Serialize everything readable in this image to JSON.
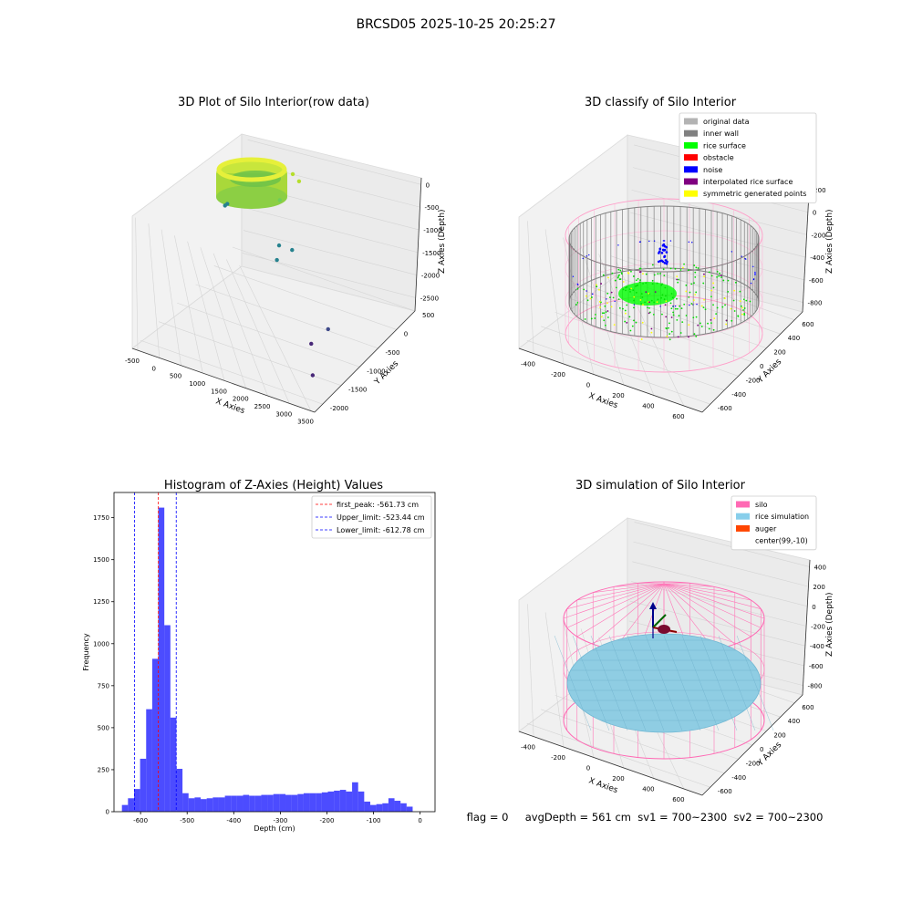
{
  "figure": {
    "suptitle": "BRCSD05 2025-10-25 20:25:27",
    "status_text": "flag = 0     avgDepth = 561 cm  sv1 = 700~2300  sv2 = 700~2300"
  },
  "chart_data": [
    {
      "type": "scatter3d",
      "title": "3D Plot of Silo Interior(row data)",
      "xlabel": "X Axies",
      "ylabel": "Y Axies",
      "zlabel": "Z Axies (Depth)",
      "xticks": [
        "-500",
        "0",
        "500",
        "1000",
        "1500",
        "2000",
        "2500",
        "3000",
        "3500"
      ],
      "yticks": [
        "500",
        "0",
        "-500",
        "-1000",
        "-1500",
        "-2000"
      ],
      "zticks": [
        "0",
        "-500",
        "-1000",
        "-1500",
        "-2000",
        "-2500"
      ],
      "colormap": "viridis",
      "outlier_points": [
        {
          "x": 1100,
          "y": 0,
          "z": -200
        },
        {
          "x": 1250,
          "y": 0,
          "z": -300
        },
        {
          "x": 1000,
          "y": -200,
          "z": -600
        },
        {
          "x": -400,
          "y": 0,
          "z": -1300
        },
        {
          "x": -350,
          "y": 0,
          "z": -1250
        },
        {
          "x": 1200,
          "y": -400,
          "z": -1300
        },
        {
          "x": 1500,
          "y": -400,
          "z": -1300
        },
        {
          "x": 1250,
          "y": -500,
          "z": -1500
        },
        {
          "x": 2900,
          "y": -1000,
          "z": -2000
        },
        {
          "x": 2700,
          "y": -1200,
          "z": -2200
        },
        {
          "x": 3100,
          "y": -1600,
          "z": -2400
        }
      ]
    },
    {
      "type": "scatter3d",
      "title": "3D classify of Silo Interior",
      "xlabel": "X Axies",
      "ylabel": "Y Axies",
      "zlabel": "Z Axies (Depth)",
      "xticks": [
        "-400",
        "-200",
        "0",
        "200",
        "400",
        "600"
      ],
      "yticks": [
        "600",
        "400",
        "200",
        "0",
        "-200",
        "-400",
        "-600"
      ],
      "zticks": [
        "200",
        "0",
        "-200",
        "-400",
        "-600",
        "-800"
      ],
      "legend_loc": "upper right",
      "legend": [
        {
          "label": "original data",
          "color": "#b3b3b3"
        },
        {
          "label": "inner wall",
          "color": "#808080"
        },
        {
          "label": "rice surface",
          "color": "#00ff00"
        },
        {
          "label": "obstacle",
          "color": "#ff0000"
        },
        {
          "label": "noise",
          "color": "#0000ff"
        },
        {
          "label": "interpolated rice surface",
          "color": "#800080"
        },
        {
          "label": "symmetric generated points",
          "color": "#ffff00"
        }
      ]
    },
    {
      "type": "bar",
      "title": "Histogram of Z-Axies (Height) Values",
      "xlabel": "Depth (cm)",
      "ylabel": "Frequency",
      "xlim": [
        -657,
        32
      ],
      "ylim": [
        0,
        1900
      ],
      "xticks": [
        -600,
        -500,
        -400,
        -300,
        -200,
        -100,
        0
      ],
      "yticks": [
        0,
        250,
        500,
        750,
        1000,
        1250,
        1500,
        1750
      ],
      "bar_color": "#0000ff",
      "bin_width": 13,
      "bin_start": -640,
      "values": [
        40,
        80,
        135,
        315,
        610,
        910,
        1810,
        1110,
        560,
        255,
        110,
        80,
        85,
        75,
        80,
        85,
        85,
        95,
        95,
        95,
        100,
        95,
        95,
        100,
        100,
        105,
        105,
        100,
        100,
        105,
        110,
        110,
        110,
        115,
        120,
        125,
        130,
        120,
        175,
        120,
        60,
        40,
        45,
        50,
        80,
        65,
        50,
        30
      ],
      "vlines": [
        {
          "name": "first_peak: -561.73 cm",
          "x": -561.73,
          "color": "#ff0000"
        },
        {
          "name": "Upper_limit: -523.44 cm",
          "x": -523.44,
          "color": "#0000ff"
        },
        {
          "name": "Lower_limit: -612.78 cm",
          "x": -612.78,
          "color": "#0000ff"
        }
      ],
      "legend_loc": "upper right"
    },
    {
      "type": "surface3d",
      "title": "3D simulation of Silo Interior",
      "xlabel": "X Axies",
      "ylabel": "Y Axies",
      "zlabel": "Z Axies (Depth)",
      "xticks": [
        "-400",
        "-200",
        "0",
        "200",
        "400",
        "600"
      ],
      "yticks": [
        "600",
        "400",
        "200",
        "0",
        "-200",
        "-400",
        "-600"
      ],
      "zticks": [
        "400",
        "200",
        "0",
        "-200",
        "-400",
        "-600",
        "-800"
      ],
      "legend_loc": "upper right",
      "legend": [
        {
          "label": "silo",
          "color": "#ff69b4"
        },
        {
          "label": "rice simulation",
          "color": "#87ceeb"
        },
        {
          "label": "auger",
          "color": "#ff4500"
        },
        {
          "label": "center(99,-10)",
          "color": "#ffffff"
        }
      ]
    }
  ]
}
